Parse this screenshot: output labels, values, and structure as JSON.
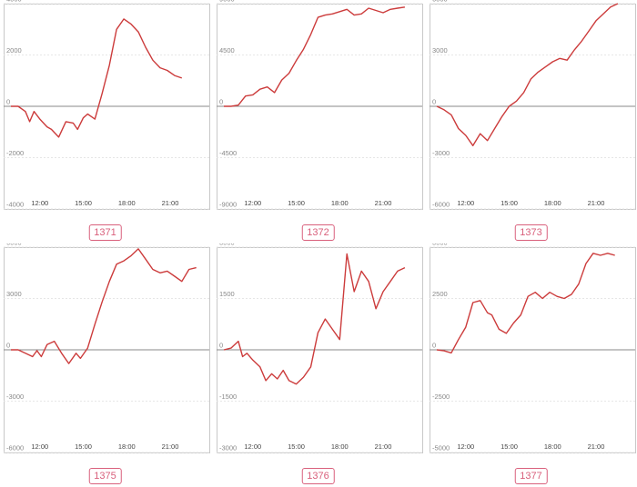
{
  "colors": {
    "line": "#cc3b3b",
    "badge": "#d9607c"
  },
  "chart_data": [
    {
      "type": "line",
      "label": "1371",
      "yticks": [
        4000,
        2000,
        0,
        -2000,
        -4000
      ],
      "ylim": [
        -4000,
        4000
      ],
      "xticks": [
        "12:00",
        "15:00",
        "18:00",
        "21:00"
      ],
      "x": [
        10.0,
        10.5,
        11.0,
        11.3,
        11.6,
        12.0,
        12.5,
        12.8,
        13.3,
        13.8,
        14.3,
        14.6,
        15.0,
        15.3,
        15.8,
        16.3,
        16.8,
        17.3,
        17.8,
        18.3,
        18.8,
        19.3,
        19.8,
        20.3,
        20.8,
        21.3,
        21.8
      ],
      "values": [
        0,
        0,
        -200,
        -600,
        -200,
        -500,
        -800,
        -900,
        -1200,
        -600,
        -650,
        -900,
        -450,
        -300,
        -500,
        500,
        1600,
        3000,
        3400,
        3200,
        2900,
        2300,
        1800,
        1500,
        1400,
        1200,
        1100
      ]
    },
    {
      "type": "line",
      "label": "1372",
      "yticks": [
        9000,
        4500,
        0,
        -4500,
        -9000
      ],
      "ylim": [
        -9000,
        9000
      ],
      "xticks": [
        "12:00",
        "15:00",
        "18:00",
        "21:00"
      ],
      "x": [
        10.0,
        10.5,
        11.0,
        11.5,
        12.0,
        12.5,
        13.0,
        13.5,
        14.0,
        14.5,
        15.0,
        15.5,
        16.0,
        16.5,
        17.0,
        17.5,
        18.0,
        18.5,
        19.0,
        19.5,
        20.0,
        20.5,
        21.0,
        21.5,
        22.0,
        22.5
      ],
      "values": [
        0,
        0,
        100,
        900,
        1000,
        1500,
        1700,
        1200,
        2300,
        2900,
        4000,
        5000,
        6300,
        7800,
        8000,
        8100,
        8300,
        8500,
        8000,
        8100,
        8600,
        8400,
        8200,
        8500,
        8600,
        8700
      ]
    },
    {
      "type": "line",
      "label": "1373",
      "yticks": [
        6000,
        3000,
        0,
        -3000,
        -6000
      ],
      "ylim": [
        -6000,
        6000
      ],
      "xticks": [
        "12:00",
        "15:00",
        "18:00",
        "21:00"
      ],
      "x": [
        10.0,
        10.5,
        11.0,
        11.5,
        12.0,
        12.5,
        13.0,
        13.5,
        14.0,
        14.5,
        15.0,
        15.5,
        16.0,
        16.5,
        17.0,
        17.5,
        18.0,
        18.5,
        19.0,
        19.5,
        20.0,
        20.5,
        21.0,
        21.5,
        22.0,
        22.5
      ],
      "values": [
        0,
        -200,
        -500,
        -1300,
        -1700,
        -2300,
        -1600,
        -2000,
        -1300,
        -600,
        0,
        300,
        800,
        1600,
        2000,
        2300,
        2600,
        2800,
        2700,
        3300,
        3800,
        4400,
        5000,
        5400,
        5800,
        6000
      ]
    },
    {
      "type": "line",
      "label": "1375",
      "yticks": [
        6000,
        3000,
        0,
        -3000,
        -6000
      ],
      "ylim": [
        -6000,
        6000
      ],
      "xticks": [
        "12:00",
        "15:00",
        "18:00",
        "21:00"
      ],
      "x": [
        10.0,
        10.5,
        11.0,
        11.5,
        11.8,
        12.1,
        12.5,
        13.0,
        13.5,
        14.0,
        14.5,
        14.8,
        15.3,
        15.8,
        16.3,
        16.8,
        17.3,
        17.8,
        18.3,
        18.8,
        19.3,
        19.8,
        20.3,
        20.8,
        21.3,
        21.8,
        22.3,
        22.8
      ],
      "values": [
        0,
        0,
        -200,
        -400,
        -50,
        -400,
        300,
        500,
        -200,
        -800,
        -200,
        -500,
        100,
        1500,
        2800,
        4000,
        5000,
        5200,
        5500,
        5900,
        5300,
        4700,
        4500,
        4600,
        4300,
        4000,
        4700,
        4800
      ]
    },
    {
      "type": "line",
      "label": "1376",
      "yticks": [
        3000,
        1500,
        0,
        -1500,
        -3000
      ],
      "ylim": [
        -3000,
        3000
      ],
      "xticks": [
        "12:00",
        "15:00",
        "18:00",
        "21:00"
      ],
      "x": [
        10.0,
        10.5,
        11.0,
        11.3,
        11.6,
        12.0,
        12.5,
        12.9,
        13.3,
        13.7,
        14.1,
        14.5,
        15.0,
        15.5,
        16.0,
        16.5,
        17.0,
        17.5,
        18.0,
        18.5,
        19.0,
        19.5,
        20.0,
        20.5,
        21.0,
        21.5,
        22.0,
        22.5
      ],
      "values": [
        0,
        50,
        250,
        -200,
        -100,
        -300,
        -500,
        -900,
        -700,
        -850,
        -600,
        -900,
        -1000,
        -800,
        -500,
        500,
        900,
        600,
        300,
        2800,
        1700,
        2300,
        2000,
        1200,
        1700,
        2000,
        2300,
        2400
      ]
    },
    {
      "type": "line",
      "label": "1377",
      "yticks": [
        5000,
        2500,
        0,
        -2500,
        -5000
      ],
      "ylim": [
        -5000,
        5000
      ],
      "xticks": [
        "12:00",
        "15:00",
        "18:00",
        "21:00"
      ],
      "x": [
        10.0,
        10.5,
        11.0,
        11.5,
        12.0,
        12.5,
        13.0,
        13.5,
        13.8,
        14.3,
        14.8,
        15.3,
        15.8,
        16.3,
        16.8,
        17.3,
        17.8,
        18.3,
        18.8,
        19.3,
        19.8,
        20.3,
        20.8,
        21.3,
        21.8,
        22.3
      ],
      "values": [
        0,
        -50,
        -150,
        500,
        1100,
        2300,
        2400,
        1800,
        1700,
        1000,
        800,
        1300,
        1700,
        2600,
        2800,
        2500,
        2800,
        2600,
        2500,
        2700,
        3200,
        4200,
        4700,
        4600,
        4700,
        4600
      ]
    }
  ]
}
